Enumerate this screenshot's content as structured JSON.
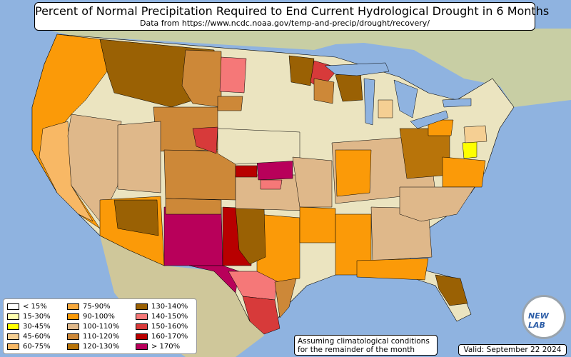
{
  "header": {
    "title": "Percent of Normal Precipitation Required to End Current Hydrological Drought in 6 Months",
    "subtitle": "Data from https://www.ncdc.noaa.gov/temp-and-precip/drought/recovery/"
  },
  "legend": {
    "items": [
      {
        "label": "< 15%",
        "color": "#ffffff"
      },
      {
        "label": "15-30%",
        "color": "#ffffb0"
      },
      {
        "label": "30-45%",
        "color": "#ffff00"
      },
      {
        "label": "45-60%",
        "color": "#f5cf93"
      },
      {
        "label": "60-75%",
        "color": "#f8b865"
      },
      {
        "label": "75-90%",
        "color": "#f7a83c"
      },
      {
        "label": "90-100%",
        "color": "#fb9a08"
      },
      {
        "label": "100-110%",
        "color": "#dfb88a"
      },
      {
        "label": "110-120%",
        "color": "#cd8838"
      },
      {
        "label": "120-130%",
        "color": "#b8740a"
      },
      {
        "label": "130-140%",
        "color": "#9a6104"
      },
      {
        "label": "140-150%",
        "color": "#f57878"
      },
      {
        "label": "150-160%",
        "color": "#d73a3a"
      },
      {
        "label": "160-170%",
        "color": "#b80000"
      },
      {
        "label": "> 170%",
        "color": "#b8005a"
      }
    ]
  },
  "note": {
    "line1": "Assuming climatological conditions",
    "line2": "for the remainder of the month"
  },
  "valid": "Valid: September 22 2024",
  "logo_text": "NEW LAB",
  "colors": {
    "ocean": "#8fb3e0",
    "land": "#e9e2bd",
    "nodrought_land": "#ece6c6",
    "canada": "#c9cfa5",
    "lakes": "#8fb3e0"
  }
}
